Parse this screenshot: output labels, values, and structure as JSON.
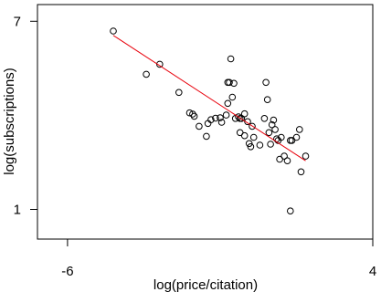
{
  "chart_data": {
    "type": "scatter",
    "title": "",
    "xlabel": "log(price/citation)",
    "ylabel": "log(subscriptions)",
    "xlim": [
      -6,
      4
    ],
    "ylim": [
      1,
      7
    ],
    "xticks": [
      "-6",
      "4"
    ],
    "yticks": [
      "1",
      "7"
    ],
    "points_x": [
      -4.5,
      -3.42,
      -2.98,
      -2.35,
      -2.0,
      -1.9,
      -1.85,
      -1.69,
      -1.45,
      -1.15,
      -1.4,
      -1.3,
      -1.0,
      -0.95,
      -0.75,
      -0.8,
      -0.6,
      -0.55,
      -0.5,
      -0.75,
      -0.7,
      -0.65,
      -0.4,
      -0.35,
      -0.3,
      -0.1,
      -0.2,
      -0.05,
      0.05,
      0.0,
      0.1,
      -0.35,
      -0.2,
      0.45,
      0.3,
      0.6,
      0.65,
      0.8,
      0.7,
      0.75,
      0.85,
      0.9,
      1.0,
      0.5,
      0.55,
      0.95,
      1.1,
      1.2,
      1.3,
      1.35,
      1.5,
      1.6,
      1.8,
      1.65,
      1.3
    ],
    "points_y": [
      6.69,
      5.31,
      5.63,
      4.73,
      4.08,
      4.04,
      3.97,
      3.65,
      3.33,
      3.91,
      3.74,
      3.86,
      3.92,
      3.78,
      4.38,
      4.01,
      4.58,
      5.02,
      3.9,
      5.05,
      5.05,
      5.8,
      3.95,
      3.45,
      3.9,
      3.8,
      3.35,
      3.1,
      3.65,
      3.0,
      3.3,
      3.9,
      4.05,
      3.9,
      3.05,
      3.45,
      3.08,
      3.55,
      3.7,
      3.85,
      3.25,
      3.2,
      3.3,
      5.05,
      4.5,
      2.6,
      2.7,
      2.55,
      3.2,
      3.2,
      3.3,
      3.55,
      2.7,
      2.2,
      0.95
    ],
    "fit_line": {
      "x": [
        -4.5,
        1.8
      ],
      "y": [
        6.55,
        2.55
      ],
      "color": "#e8000b"
    },
    "marker": "open-circle",
    "grid": false,
    "legend": "none"
  }
}
